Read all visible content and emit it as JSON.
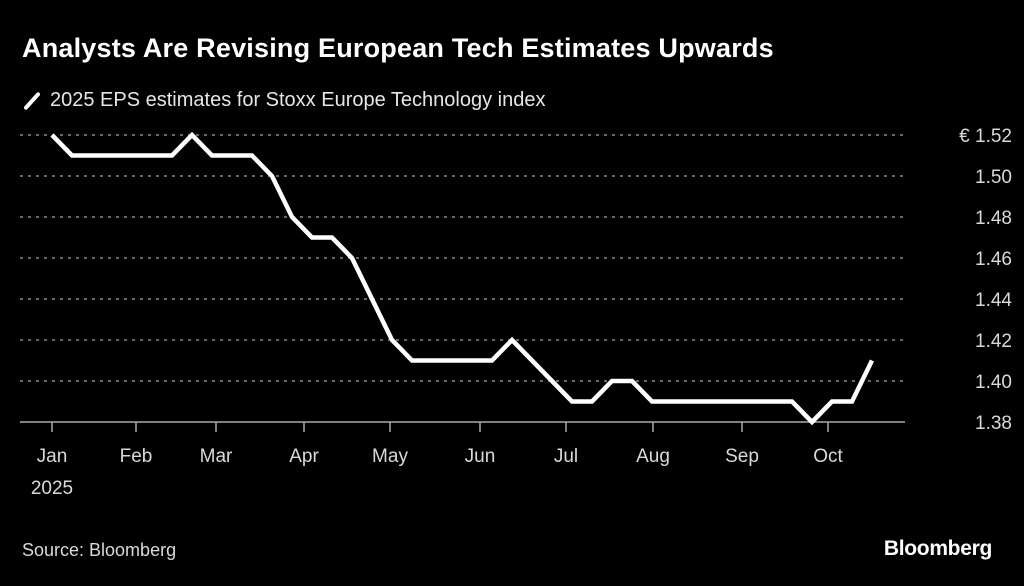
{
  "chart_data": {
    "type": "line",
    "title": "Analysts Are Revising European Tech Estimates Upwards",
    "series": [
      {
        "name": "2025 EPS estimates for Stoxx Europe Technology index",
        "color": "#ffffff",
        "x": [
          0,
          1,
          2,
          3,
          4,
          5,
          6,
          7,
          8,
          9,
          10,
          11,
          12,
          13,
          14,
          15,
          16,
          17,
          18,
          19,
          20,
          21,
          22,
          23,
          24,
          25,
          26,
          27,
          28,
          29,
          30,
          31,
          32,
          33,
          34,
          35,
          36,
          37,
          38,
          39,
          40,
          41
        ],
        "values": [
          1.52,
          1.51,
          1.51,
          1.51,
          1.51,
          1.51,
          1.51,
          1.52,
          1.51,
          1.51,
          1.51,
          1.5,
          1.48,
          1.47,
          1.47,
          1.46,
          1.44,
          1.42,
          1.41,
          1.41,
          1.41,
          1.41,
          1.41,
          1.42,
          1.41,
          1.4,
          1.39,
          1.39,
          1.4,
          1.4,
          1.39,
          1.39,
          1.39,
          1.39,
          1.39,
          1.39,
          1.39,
          1.39,
          1.38,
          1.39,
          1.39,
          1.41
        ]
      }
    ],
    "x_unit": "weeks since early Jan 2025",
    "xlim": [
      -1.6,
      42.6
    ],
    "x_ticks": [
      {
        "pos": 0,
        "label": "Jan",
        "sub": "2025"
      },
      {
        "pos": 4.2,
        "label": "Feb"
      },
      {
        "pos": 8.2,
        "label": "Mar"
      },
      {
        "pos": 12.6,
        "label": "Apr"
      },
      {
        "pos": 16.9,
        "label": "May"
      },
      {
        "pos": 21.4,
        "label": "Jun"
      },
      {
        "pos": 25.7,
        "label": "Jul"
      },
      {
        "pos": 30.05,
        "label": "Aug"
      },
      {
        "pos": 34.5,
        "label": "Sep"
      },
      {
        "pos": 38.8,
        "label": "Oct"
      }
    ],
    "ylim": [
      1.38,
      1.52
    ],
    "y_ticks": [
      {
        "value": 1.52,
        "label": "€ 1.52"
      },
      {
        "value": 1.5,
        "label": "1.50"
      },
      {
        "value": 1.48,
        "label": "1.48"
      },
      {
        "value": 1.46,
        "label": "1.46"
      },
      {
        "value": 1.44,
        "label": "1.44"
      },
      {
        "value": 1.42,
        "label": "1.42"
      },
      {
        "value": 1.4,
        "label": "1.40"
      },
      {
        "value": 1.38,
        "label": "1.38"
      }
    ],
    "grid": true,
    "legend": "top-left",
    "source": "Source: Bloomberg",
    "brand": "Bloomberg"
  }
}
